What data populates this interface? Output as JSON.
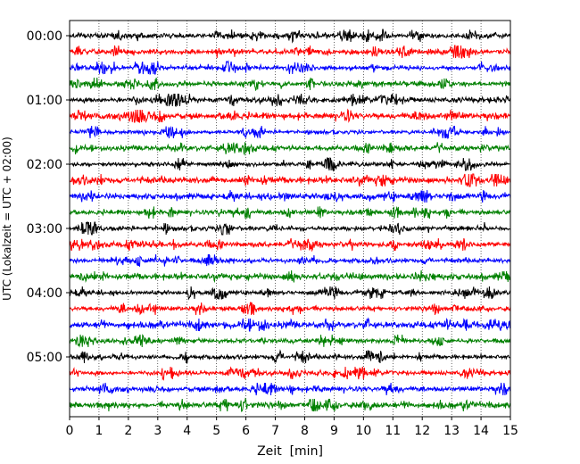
{
  "chart_data": {
    "type": "line",
    "title": "",
    "xlabel": "Zeit  [min]",
    "ylabel": "UTC (Lokalzeit = UTC + 02:00)",
    "xlim": [
      0,
      15
    ],
    "x_ticks": [
      "0",
      "1",
      "2",
      "3",
      "4",
      "5",
      "6",
      "7",
      "8",
      "9",
      "10",
      "11",
      "12",
      "13",
      "14",
      "15"
    ],
    "y_ticks": [
      "00:00",
      "01:00",
      "02:00",
      "03:00",
      "04:00",
      "05:00"
    ],
    "grid": "vertical dotted lines at each minute",
    "trace_color_cycle": [
      "#000000",
      "#ff0000",
      "#0000ff",
      "#008000"
    ],
    "trace_count": 24,
    "trace_interval_minutes": 15,
    "seismic_traces_start_utc": "00:00",
    "seismic_traces_end_utc": "05:45"
  }
}
